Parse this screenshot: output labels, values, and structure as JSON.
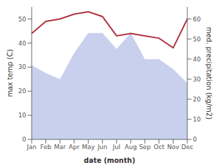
{
  "chart_data": {
    "type": "line",
    "categories": [
      "Jan",
      "Feb",
      "Mar",
      "Apr",
      "May",
      "Jun",
      "Jul",
      "Aug",
      "Sep",
      "Oct",
      "Nov",
      "Dec"
    ],
    "series": [
      {
        "type": "area",
        "axis": "y2",
        "color": "#c8d0ee",
        "values": [
          37,
          33,
          30,
          43,
          53,
          53,
          45,
          53,
          40,
          40,
          35,
          28
        ]
      },
      {
        "type": "line",
        "color": "#b03040",
        "values": [
          44,
          49,
          50,
          52,
          53,
          51,
          43,
          44,
          43,
          42,
          38,
          50
        ]
      }
    ],
    "xlabel": "date (month)",
    "ylabel": "max temp (C)",
    "y2label": "med. precipitation (kg/m2)",
    "ylim": [
      0,
      55
    ],
    "yticks": [
      0,
      10,
      20,
      30,
      40,
      50
    ],
    "y2lim": [
      0,
      66
    ],
    "y2ticks": [
      0,
      10,
      20,
      30,
      40,
      50,
      60
    ],
    "grid": false
  }
}
